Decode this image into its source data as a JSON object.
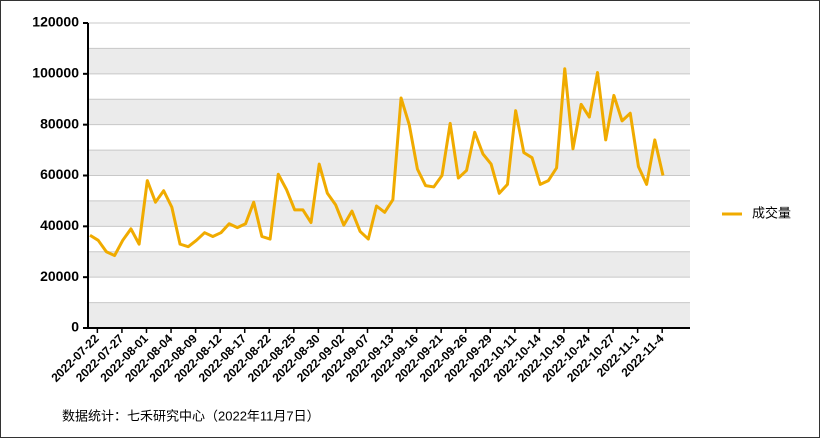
{
  "chart_data": {
    "type": "line",
    "categories": [
      "2022-07-22",
      null,
      null,
      "2022-07-27",
      null,
      null,
      "2022-08-01",
      null,
      null,
      "2022-08-04",
      null,
      null,
      "2022-08-09",
      null,
      null,
      "2022-08-12",
      null,
      null,
      "2022-08-17",
      null,
      null,
      "2022-08-22",
      null,
      null,
      "2022-08-25",
      null,
      null,
      "2022-08-30",
      null,
      null,
      "2022-09-02",
      null,
      null,
      "2022-09-07",
      null,
      null,
      "2022-09-13",
      null,
      null,
      "2022-09-16",
      null,
      null,
      "2022-09-21",
      null,
      null,
      "2022-09-26",
      null,
      null,
      "2022-09-29",
      null,
      null,
      "2022-10-11",
      null,
      null,
      "2022-10-14",
      null,
      null,
      "2022-10-19",
      null,
      null,
      "2022-10-24",
      null,
      null,
      "2022-10-27",
      null,
      null,
      "2022-11-1",
      null,
      null,
      "2022-11-4",
      null
    ],
    "series": [
      {
        "name": "成交量",
        "color": "#f0ab00",
        "values": [
          36500,
          34500,
          30000,
          28500,
          34500,
          39000,
          33000,
          58000,
          49500,
          54000,
          47500,
          33000,
          32000,
          34500,
          37500,
          36000,
          37500,
          41000,
          39500,
          41000,
          49500,
          36000,
          35000,
          60500,
          54500,
          46500,
          46500,
          41500,
          64500,
          53000,
          48500,
          40500,
          46000,
          38000,
          35000,
          48000,
          45500,
          50500,
          90500,
          80000,
          62500,
          56000,
          55500,
          60000,
          80500,
          59000,
          62000,
          77000,
          68500,
          64500,
          53000,
          56500,
          85500,
          69000,
          67000,
          56500,
          58000,
          63000,
          102000,
          70500,
          88000,
          83000,
          100500,
          74000,
          91500,
          81500,
          84500,
          63500,
          56500,
          74000,
          60000
        ]
      }
    ],
    "ylim": [
      0,
      120000
    ],
    "yticks": [
      0,
      20000,
      40000,
      60000,
      80000,
      100000,
      120000
    ],
    "legend": "right",
    "source": "数据统计：七禾研究中心（2022年11月7日）"
  }
}
